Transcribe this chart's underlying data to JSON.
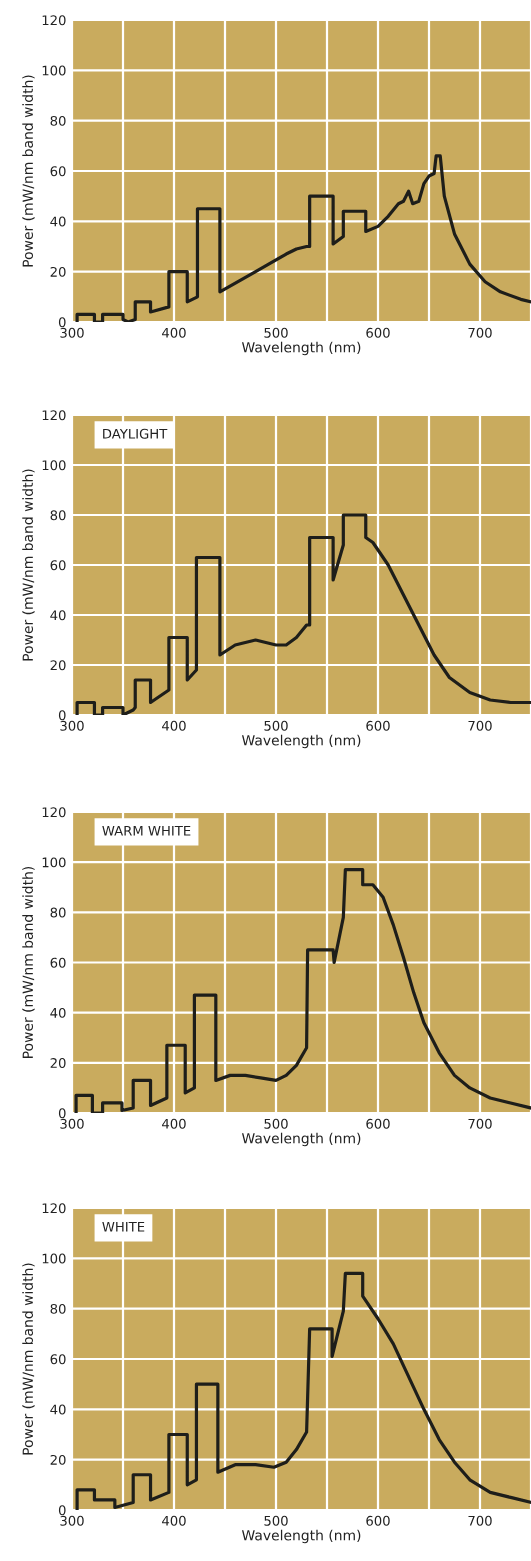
{
  "chart_data": [
    {
      "type": "line",
      "xlabel": "Wavelength (nm)",
      "ylabel": "Power (mW/nm band width)",
      "xlim": [
        300,
        750
      ],
      "ylim": [
        0,
        120
      ],
      "xticks": [
        300,
        {
          "value": 350,
          "label": null
        },
        400,
        {
          "value": 450,
          "label": null
        },
        500,
        {
          "value": 550,
          "label": null
        },
        600,
        {
          "value": 650,
          "label": null
        },
        700,
        {
          "value": 750,
          "label": null
        }
      ],
      "yticks": [
        0,
        20,
        40,
        60,
        80,
        100,
        120
      ],
      "grid": true,
      "line_style": "solid",
      "marker": "none",
      "series": [
        {
          "color": "#1e1e1a",
          "x": [
            305,
            305,
            322,
            322,
            330,
            330,
            350,
            350,
            355,
            362,
            362,
            377,
            377,
            395,
            395,
            413,
            413,
            423,
            423,
            445,
            445,
            480,
            510,
            520,
            530,
            533,
            533,
            556,
            556,
            566,
            566,
            588,
            588,
            600,
            610,
            620,
            625,
            630,
            634,
            640,
            645,
            650,
            655,
            657,
            661,
            665,
            675,
            690,
            705,
            720,
            740,
            750
          ],
          "values": [
            0,
            3,
            3,
            0,
            0,
            3,
            3,
            1,
            0,
            1,
            8,
            8,
            4,
            6,
            20,
            20,
            8,
            10,
            45,
            45,
            12,
            20,
            27,
            29,
            30,
            30,
            50,
            50,
            31,
            34,
            44,
            44,
            36,
            38,
            42,
            47,
            48,
            52,
            47,
            48,
            55,
            58,
            59,
            66,
            66,
            50,
            35,
            23,
            16,
            12,
            9,
            8
          ]
        }
      ]
    },
    {
      "type": "line",
      "title": "DAYLIGHT",
      "xlabel": "Wavelength (nm)",
      "ylabel": "Power (mW/nm band width)",
      "xlim": [
        300,
        750
      ],
      "ylim": [
        0,
        120
      ],
      "xticks": [
        300,
        {
          "value": 350,
          "label": null
        },
        400,
        {
          "value": 450,
          "label": null
        },
        500,
        {
          "value": 550,
          "label": null
        },
        600,
        {
          "value": 650,
          "label": null
        },
        700,
        {
          "value": 750,
          "label": null
        }
      ],
      "yticks": [
        0,
        20,
        40,
        60,
        80,
        100,
        120
      ],
      "grid": true,
      "line_style": "solid",
      "marker": "none",
      "series": [
        {
          "color": "#1e1e1a",
          "x": [
            305,
            305,
            322,
            322,
            330,
            330,
            350,
            350,
            360,
            362,
            362,
            377,
            377,
            395,
            395,
            413,
            413,
            422,
            422,
            445,
            445,
            460,
            480,
            500,
            510,
            520,
            530,
            533,
            533,
            556,
            556,
            566,
            566,
            588,
            588,
            595,
            610,
            625,
            640,
            655,
            670,
            690,
            710,
            730,
            750
          ],
          "values": [
            0,
            5,
            5,
            0,
            0,
            3,
            3,
            0,
            2,
            3,
            14,
            14,
            5,
            10,
            31,
            31,
            14,
            18,
            63,
            63,
            24,
            28,
            30,
            28,
            28,
            31,
            36,
            36,
            71,
            71,
            54,
            68,
            80,
            80,
            71,
            69,
            60,
            48,
            36,
            24,
            15,
            9,
            6,
            5,
            5
          ]
        }
      ]
    },
    {
      "type": "line",
      "title": "WARM WHITE",
      "xlabel": "Wavelength (nm)",
      "ylabel": "Power (mW/nm band width)",
      "xlim": [
        300,
        750
      ],
      "ylim": [
        0,
        120
      ],
      "xticks": [
        300,
        {
          "value": 350,
          "label": null
        },
        400,
        {
          "value": 450,
          "label": null
        },
        500,
        {
          "value": 550,
          "label": null
        },
        600,
        {
          "value": 650,
          "label": null
        },
        700,
        {
          "value": 750,
          "label": null
        }
      ],
      "yticks": [
        0,
        20,
        40,
        60,
        80,
        100,
        120
      ],
      "grid": true,
      "line_style": "solid",
      "marker": "none",
      "series": [
        {
          "color": "#1e1e1a",
          "x": [
            304,
            304,
            320,
            320,
            330,
            330,
            349,
            349,
            360,
            360,
            377,
            377,
            393,
            393,
            411,
            411,
            420,
            420,
            441,
            441,
            455,
            470,
            485,
            500,
            510,
            520,
            530,
            531,
            556,
            557,
            566,
            568,
            585,
            585,
            595,
            605,
            615,
            625,
            635,
            645,
            660,
            675,
            690,
            710,
            730,
            750
          ],
          "values": [
            0,
            7,
            7,
            0,
            0,
            4,
            4,
            1,
            2,
            13,
            13,
            3,
            6,
            27,
            27,
            8,
            10,
            47,
            47,
            13,
            15,
            15,
            14,
            13,
            15,
            19,
            26,
            65,
            65,
            60,
            78,
            97,
            97,
            91,
            91,
            86,
            75,
            62,
            48,
            36,
            24,
            15,
            10,
            6,
            4,
            2
          ]
        }
      ]
    },
    {
      "type": "line",
      "title": "WHITE",
      "xlabel": "Wavelength (nm)",
      "ylabel": "Power (mW/nm band width)",
      "xlim": [
        300,
        750
      ],
      "ylim": [
        0,
        120
      ],
      "xticks": [
        300,
        {
          "value": 350,
          "label": null
        },
        400,
        {
          "value": 450,
          "label": null
        },
        500,
        {
          "value": 550,
          "label": null
        },
        600,
        {
          "value": 650,
          "label": null
        },
        700,
        {
          "value": 750,
          "label": null
        }
      ],
      "yticks": [
        0,
        20,
        40,
        60,
        80,
        100,
        120
      ],
      "grid": true,
      "line_style": "solid",
      "marker": "none",
      "series": [
        {
          "color": "#1e1e1a",
          "x": [
            305,
            305,
            322,
            322,
            342,
            342,
            360,
            360,
            377,
            377,
            395,
            395,
            413,
            413,
            422,
            422,
            443,
            443,
            460,
            480,
            498,
            510,
            520,
            530,
            533,
            555,
            555,
            566,
            568,
            585,
            585,
            600,
            615,
            630,
            645,
            660,
            675,
            690,
            710,
            730,
            750
          ],
          "values": [
            0,
            8,
            8,
            4,
            4,
            1,
            3,
            14,
            14,
            4,
            7,
            30,
            30,
            10,
            12,
            50,
            50,
            15,
            18,
            18,
            17,
            19,
            24,
            31,
            72,
            72,
            61,
            79,
            94,
            94,
            85,
            76,
            66,
            53,
            40,
            28,
            19,
            12,
            7,
            5,
            3
          ]
        }
      ]
    }
  ]
}
